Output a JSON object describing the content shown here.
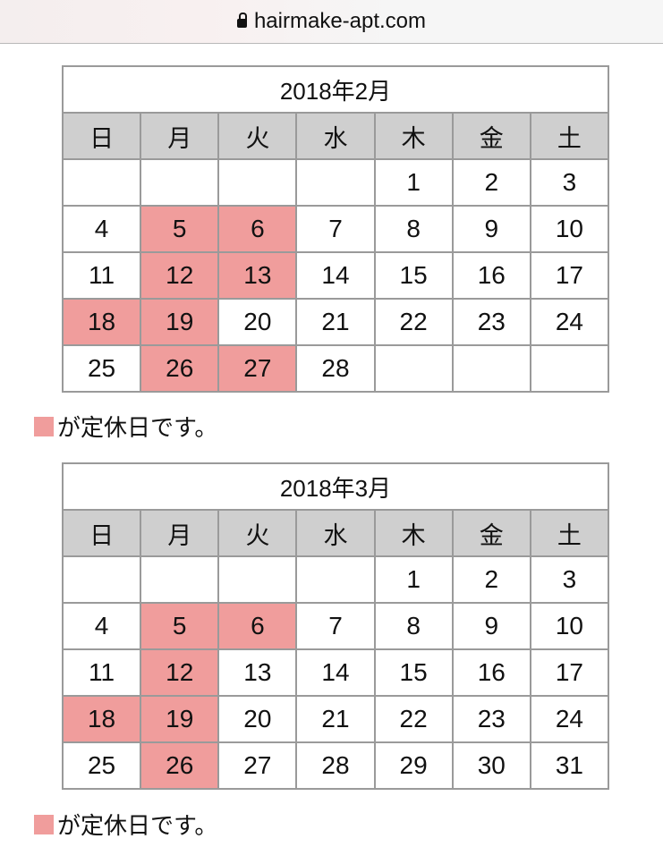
{
  "browser": {
    "url": "hairmake-apt.com",
    "icon": "lock-icon"
  },
  "holiday_color": "#f09d9c",
  "weekdays": [
    "日",
    "月",
    "火",
    "水",
    "木",
    "金",
    "土"
  ],
  "calendars": [
    {
      "title": "2018年2月",
      "legend": "が定休日です。",
      "weeks": [
        [
          "",
          "",
          "",
          "",
          "1",
          "2",
          "3"
        ],
        [
          "4",
          "5",
          "6",
          "7",
          "8",
          "9",
          "10"
        ],
        [
          "11",
          "12",
          "13",
          "14",
          "15",
          "16",
          "17"
        ],
        [
          "18",
          "19",
          "20",
          "21",
          "22",
          "23",
          "24"
        ],
        [
          "25",
          "26",
          "27",
          "28",
          "",
          "",
          ""
        ]
      ],
      "closed_days": [
        "5",
        "6",
        "12",
        "13",
        "18",
        "19",
        "26",
        "27"
      ]
    },
    {
      "title": "2018年3月",
      "legend": "が定休日です。",
      "weeks": [
        [
          "",
          "",
          "",
          "",
          "1",
          "2",
          "3"
        ],
        [
          "4",
          "5",
          "6",
          "7",
          "8",
          "9",
          "10"
        ],
        [
          "11",
          "12",
          "13",
          "14",
          "15",
          "16",
          "17"
        ],
        [
          "18",
          "19",
          "20",
          "21",
          "22",
          "23",
          "24"
        ],
        [
          "25",
          "26",
          "27",
          "28",
          "29",
          "30",
          "31"
        ]
      ],
      "closed_days": [
        "5",
        "6",
        "12",
        "18",
        "19",
        "26"
      ]
    }
  ]
}
